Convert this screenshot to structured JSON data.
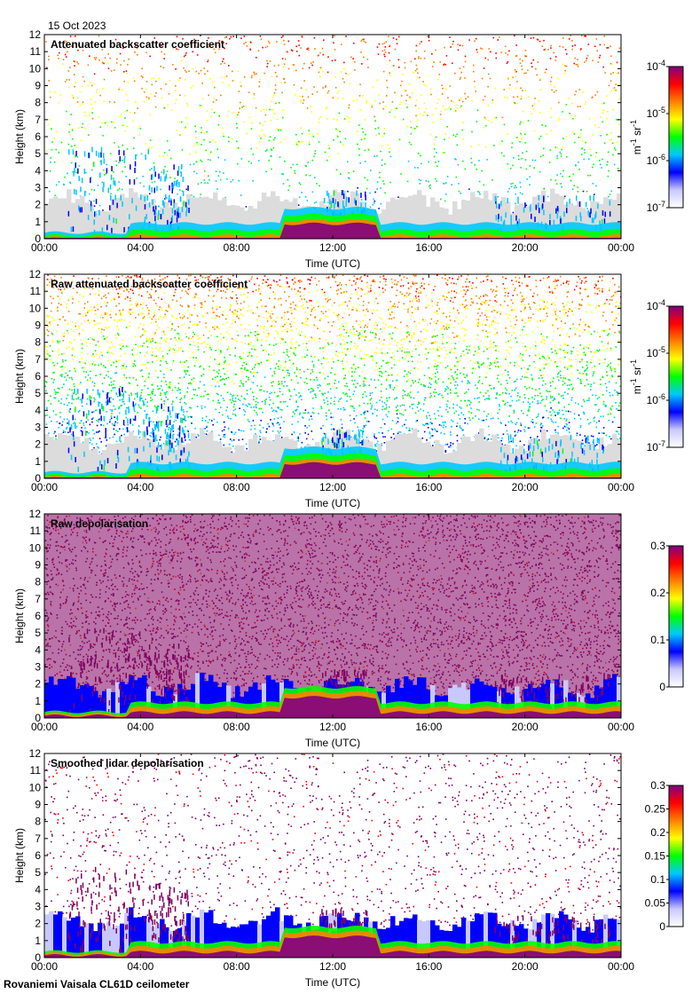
{
  "date_label": "15 Oct 2023",
  "footer": "Rovaniemi Vaisala CL61D ceilometer",
  "colors": {
    "bg_low": "#dcdcdc",
    "colormap": [
      "#ffffff",
      "#c8c8ff",
      "#0000ff",
      "#00c8ff",
      "#00ff00",
      "#ffff00",
      "#ff8000",
      "#ff0000",
      "#800080"
    ],
    "depol_noise": "#800060"
  },
  "chart_data": [
    {
      "type": "heatmap",
      "title": "Attenuated backscatter coefficient",
      "xlabel": "Time (UTC)",
      "ylabel": "Height (km)",
      "xlim": [
        "00:00",
        "00:00"
      ],
      "ylim": [
        0,
        12
      ],
      "x_ticks": [
        "00:00",
        "04:00",
        "08:00",
        "12:00",
        "16:00",
        "20:00",
        "00:00"
      ],
      "y_ticks": [
        "0",
        "1",
        "2",
        "3",
        "4",
        "5",
        "6",
        "7",
        "8",
        "9",
        "10",
        "11",
        "12"
      ],
      "colorbar": {
        "scale": "log",
        "range": [
          1e-07,
          0.0001
        ],
        "label_base": "m",
        "label_exp1": "-1",
        "label_mid": " sr",
        "label_exp2": "-1",
        "ticks": [
          {
            "base": "10",
            "exp": "-4"
          },
          {
            "base": "10",
            "exp": "-5"
          },
          {
            "base": "10",
            "exp": "-6"
          },
          {
            "base": "10",
            "exp": "-7"
          }
        ]
      },
      "grid": false
    },
    {
      "type": "heatmap",
      "title": "Raw attenuated backscatter coefficient",
      "xlabel": "Time (UTC)",
      "ylabel": "Height (km)",
      "xlim": [
        "00:00",
        "00:00"
      ],
      "ylim": [
        0,
        12
      ],
      "x_ticks": [
        "00:00",
        "04:00",
        "08:00",
        "12:00",
        "16:00",
        "20:00",
        "00:00"
      ],
      "y_ticks": [
        "0",
        "1",
        "2",
        "3",
        "4",
        "5",
        "6",
        "7",
        "8",
        "9",
        "10",
        "11",
        "12"
      ],
      "colorbar": {
        "scale": "log",
        "range": [
          1e-07,
          0.0001
        ],
        "label_base": "m",
        "label_exp1": "-1",
        "label_mid": " sr",
        "label_exp2": "-1",
        "ticks": [
          {
            "base": "10",
            "exp": "-4"
          },
          {
            "base": "10",
            "exp": "-5"
          },
          {
            "base": "10",
            "exp": "-6"
          },
          {
            "base": "10",
            "exp": "-7"
          }
        ]
      },
      "grid": false
    },
    {
      "type": "heatmap",
      "title": "Raw depolarisation",
      "xlabel": "Time (UTC)",
      "ylabel": "Height (km)",
      "xlim": [
        "00:00",
        "00:00"
      ],
      "ylim": [
        0,
        12
      ],
      "x_ticks": [
        "00:00",
        "04:00",
        "08:00",
        "12:00",
        "16:00",
        "20:00",
        "00:00"
      ],
      "y_ticks": [
        "0",
        "1",
        "2",
        "3",
        "4",
        "5",
        "6",
        "7",
        "8",
        "9",
        "10",
        "11",
        "12"
      ],
      "colorbar": {
        "scale": "linear",
        "range": [
          0,
          0.3
        ],
        "ticks": [
          "0.3",
          "0.2",
          "0.1",
          "0"
        ]
      },
      "grid": false
    },
    {
      "type": "heatmap",
      "title": "Smoothed lidar depolarisation",
      "xlabel": "Time (UTC)",
      "ylabel": "Height (km)",
      "xlim": [
        "00:00",
        "00:00"
      ],
      "ylim": [
        0,
        12
      ],
      "x_ticks": [
        "00:00",
        "04:00",
        "08:00",
        "12:00",
        "16:00",
        "20:00",
        "00:00"
      ],
      "y_ticks": [
        "0",
        "1",
        "2",
        "3",
        "4",
        "5",
        "6",
        "7",
        "8",
        "9",
        "10",
        "11",
        "12"
      ],
      "colorbar": {
        "scale": "linear",
        "range": [
          0,
          0.3
        ],
        "ticks": [
          "0.3",
          "0.25",
          "0.2",
          "0.15",
          "0.1",
          "0.05",
          "0"
        ]
      },
      "grid": false
    }
  ]
}
